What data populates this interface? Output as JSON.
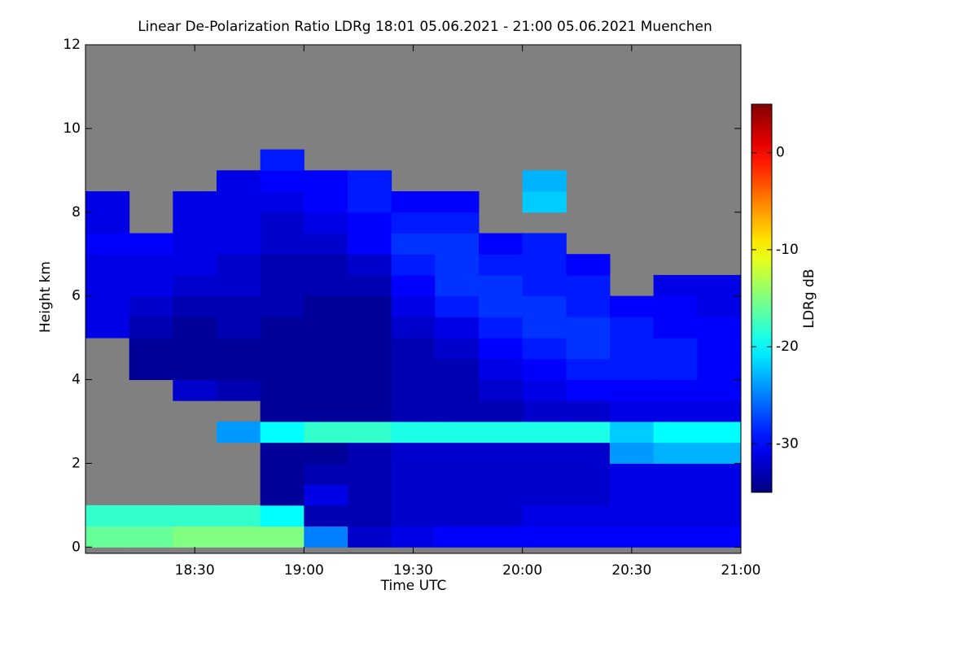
{
  "chart_data": {
    "type": "heatmap",
    "title": "Linear De-Polarization Ratio LDRg   18:01 05.06.2021 - 21:00 05.06.2021 Muenchen",
    "x_label": "Time UTC",
    "y_label": "Height km",
    "colorbar_label": "LDRg dB",
    "colormap": "jet",
    "nodata_color": "#808080",
    "xlim": [
      18.0,
      21.0
    ],
    "xticks": [
      {
        "value": 18.5,
        "label": "18:30"
      },
      {
        "value": 19.0,
        "label": "19:00"
      },
      {
        "value": 19.5,
        "label": "19:30"
      },
      {
        "value": 20.0,
        "label": "20:00"
      },
      {
        "value": 20.5,
        "label": "20:30"
      },
      {
        "value": 21.0,
        "label": "21:00"
      }
    ],
    "ylim": [
      -0.15,
      12.0
    ],
    "yticks": [
      0,
      2,
      4,
      6,
      8,
      10,
      12
    ],
    "zlim": [
      -35,
      5
    ],
    "zticks": [
      -30,
      -20,
      -10,
      0
    ],
    "x": [
      18.1,
      18.3,
      18.5,
      18.7,
      18.9,
      19.1,
      19.3,
      19.5,
      19.7,
      19.9,
      20.1,
      20.3,
      20.5,
      20.7,
      20.9
    ],
    "y": [
      0.25,
      0.75,
      1.25,
      1.75,
      2.25,
      2.75,
      3.25,
      3.75,
      4.25,
      4.75,
      5.25,
      5.75,
      6.25,
      6.75,
      7.25,
      7.75,
      8.25,
      8.75,
      9.25,
      9.75,
      10.25,
      10.75,
      11.25,
      11.75
    ],
    "values": [
      [
        -16,
        -18,
        null,
        null,
        null,
        null,
        null,
        null,
        null,
        null,
        -31,
        -31,
        -31,
        -31,
        -30,
        -31,
        -31,
        null,
        null,
        null,
        null,
        null,
        null,
        null
      ],
      [
        -16,
        -18,
        null,
        null,
        null,
        null,
        null,
        null,
        -34,
        -34,
        -33,
        -32,
        -31,
        -31,
        -30,
        null,
        null,
        null,
        null,
        null,
        null,
        null,
        null,
        null
      ],
      [
        -15,
        -18,
        null,
        null,
        null,
        null,
        null,
        -32,
        -34,
        -34,
        -34,
        -33,
        -32,
        -31,
        -31,
        -31,
        -31,
        null,
        null,
        null,
        null,
        null,
        null,
        null
      ],
      [
        -15,
        -18,
        null,
        null,
        null,
        -24,
        null,
        -33,
        -34,
        -34,
        -33,
        -33,
        -32,
        -32,
        -31,
        -31,
        -31,
        -31,
        null,
        null,
        null,
        null,
        null,
        null
      ],
      [
        -15,
        -20,
        -34,
        -34,
        -34,
        -20,
        -34,
        -34,
        -34,
        -34,
        -34,
        -33,
        -33,
        -33,
        -32,
        -32,
        -31,
        -30,
        -29,
        null,
        null,
        null,
        null,
        null
      ],
      [
        -25,
        -33,
        -31,
        -33,
        -34,
        -18,
        -34,
        -34,
        -34,
        -34,
        -34,
        -34,
        -33,
        -33,
        -32,
        -31,
        -30,
        -30,
        null,
        null,
        null,
        null,
        null,
        null
      ],
      [
        -32,
        -33,
        -33,
        -33,
        -33,
        -18,
        -34,
        -34,
        -34,
        -34,
        -34,
        -34,
        -33,
        -32,
        -30,
        -30,
        -29,
        -29,
        null,
        null,
        null,
        null,
        null,
        null
      ],
      [
        -31,
        -32,
        -32,
        -32,
        -32,
        -19,
        -33,
        -33,
        -33,
        -33,
        -32,
        -31,
        -30,
        -29,
        -28,
        -29,
        -30,
        null,
        null,
        null,
        null,
        null,
        null,
        null
      ],
      [
        -30,
        -32,
        -32,
        -32,
        -32,
        -19,
        -33,
        -33,
        -33,
        -32,
        -31,
        -29,
        -28,
        -28,
        -28,
        -29,
        -30,
        null,
        null,
        null,
        null,
        null,
        null,
        null
      ],
      [
        -30,
        -32,
        -32,
        -32,
        -32,
        -19,
        -33,
        -32,
        -31,
        -30,
        -29,
        -28,
        -28,
        -29,
        -30,
        null,
        null,
        null,
        null,
        null,
        null,
        null,
        null,
        null
      ],
      [
        -30,
        -31,
        -32,
        -32,
        -32,
        -19,
        -32,
        -31,
        -30,
        -29,
        -28,
        -28,
        -29,
        -29,
        -29,
        null,
        -22,
        -23,
        null,
        null,
        null,
        null,
        null,
        null
      ],
      [
        -30,
        -31,
        -32,
        -32,
        -32,
        -19,
        -32,
        -30,
        -29,
        -28,
        -28,
        -29,
        -29,
        -30,
        null,
        null,
        null,
        null,
        null,
        null,
        null,
        null,
        null,
        null
      ],
      [
        -30,
        -31,
        -31,
        -31,
        -24,
        -22,
        -31,
        -30,
        -29,
        -29,
        -29,
        -30,
        null,
        null,
        null,
        null,
        null,
        null,
        null,
        null,
        null,
        null,
        null,
        null
      ],
      [
        -30,
        -31,
        -31,
        -31,
        -23,
        -20,
        -31,
        -30,
        -29,
        -29,
        -30,
        -30,
        -31,
        null,
        null,
        null,
        null,
        null,
        null,
        null,
        null,
        null,
        null,
        null
      ],
      [
        -30,
        -31,
        -31,
        -31,
        -23,
        -20,
        -31,
        -30,
        -30,
        -30,
        -30,
        -31,
        -31,
        null,
        null,
        null,
        null,
        null,
        null,
        null,
        null,
        null,
        null,
        null
      ]
    ]
  }
}
